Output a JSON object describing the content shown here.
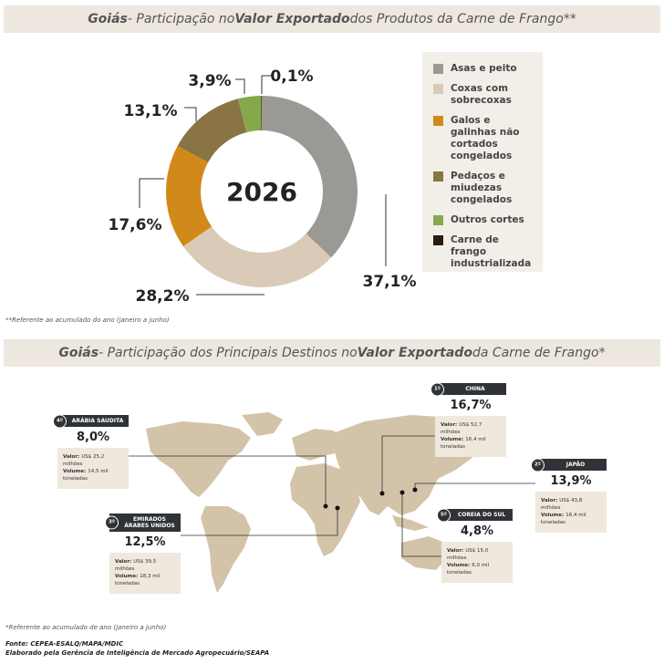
{
  "chart_data": {
    "type": "donut",
    "title": [
      "Goiás",
      " - Participação no ",
      "Valor Exportado",
      " dos Produtos da Carne de Frango**"
    ],
    "center_label": "2026",
    "categories": [
      "Asas e peito",
      "Coxas com sobrecoxas",
      "Galos e galinhas não cortados congelados",
      "Pedaços e miudezas congelados",
      "Outros cortes",
      "Carne de frango industrializada"
    ],
    "values": [
      37.1,
      28.2,
      17.6,
      13.1,
      3.9,
      0.1
    ],
    "value_labels": [
      "37,1%",
      "28,2%",
      "17,6%",
      "13,1%",
      "3,9%",
      "0,1%"
    ],
    "colors": [
      "#9b9993",
      "#d9cbb8",
      "#d18a1a",
      "#8b7444",
      "#86a84a",
      "#2b1d0e"
    ],
    "footnote": "**Referente ao acumulado do ano (janeiro a junho)"
  },
  "map": {
    "title": [
      "Goiás",
      " - Participação dos Principais Destinos no ",
      "Valor Exportado",
      " da Carne de Frango*"
    ],
    "value_label": "Valor:",
    "volume_label": "Volume:",
    "destinations": [
      {
        "rank": "1º",
        "name": "CHINA",
        "share": "16,7%",
        "value": "US$ 52,7 milhões",
        "volume": "16,4 mil toneladas"
      },
      {
        "rank": "4º",
        "name": "ARÁBIA SAUDITA",
        "share": "8,0%",
        "value": "US$ 25,2 milhões",
        "volume": "14,5 mil toneladas"
      },
      {
        "rank": "2º",
        "name": "JAPÃO",
        "share": "13,9%",
        "value": "US$ 43,8 milhões",
        "volume": "16,4 mil toneladas"
      },
      {
        "rank": "3º",
        "name": "EMIRADOS ÁRABES UNIDOS",
        "share": "12,5%",
        "value": "US$ 39,5 milhões",
        "volume": "18,3 mil toneladas"
      },
      {
        "rank": "5º",
        "name": "COREIA DO SUL",
        "share": "4,8%",
        "value": "US$ 15,0 milhões",
        "volume": "6,0 mil toneladas"
      }
    ],
    "footnote": "*Referente ao acumulado de ano (janeiro a junho)"
  },
  "source": [
    "Fonte: CEPEA-ESALQ/MAPA/MDIC",
    "Elaborado pela Gerência de Inteligência de Mercado Agropecuário/SEAPA"
  ]
}
